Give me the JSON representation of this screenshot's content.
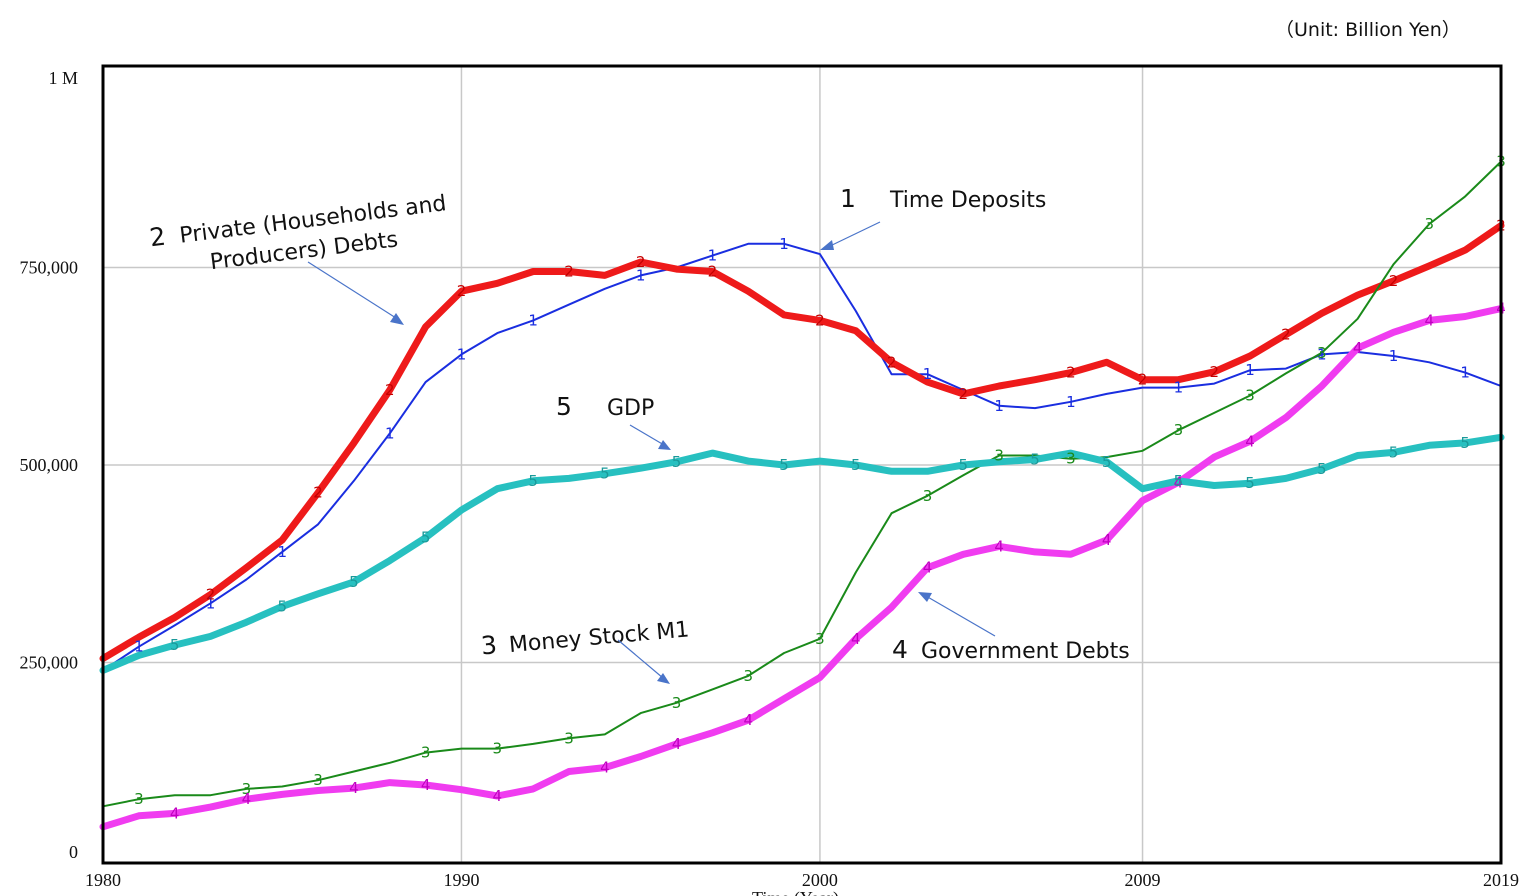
{
  "chart_data": {
    "type": "line",
    "unit_label": "（Unit: Billion Yen）",
    "xlabel": "Time (Year)",
    "ylim": [
      0,
      1000000
    ],
    "xlim": [
      1980,
      2019
    ],
    "x_ticks": [
      {
        "value": 1980,
        "label": "1980"
      },
      {
        "value": 1990,
        "label": "1990"
      },
      {
        "value": 2000,
        "label": "2000"
      },
      {
        "value": 2009,
        "label": "2009"
      },
      {
        "value": 2019,
        "label": "2019"
      }
    ],
    "y_ticks": [
      {
        "value": 0,
        "label": "0"
      },
      {
        "value": 250000,
        "label": "250,000"
      },
      {
        "value": 500000,
        "label": "500,000"
      },
      {
        "value": 750000,
        "label": "750,000"
      },
      {
        "value": 1000000,
        "label": "1 M"
      }
    ],
    "grid": true,
    "x": [
      1980,
      1981,
      1982,
      1983,
      1984,
      1985,
      1986,
      1987,
      1988,
      1989,
      1990,
      1991,
      1992,
      1993,
      1994,
      1995,
      1996,
      1997,
      1998,
      1999,
      2000,
      2001,
      2002,
      2003,
      2004,
      2005,
      2006,
      2007,
      2008,
      2009,
      2010,
      2011,
      2012,
      2013,
      2014,
      2015,
      2016,
      2017,
      2018,
      2019
    ],
    "series": [
      {
        "id": "1",
        "marker": "1",
        "color": "#1a2ee0",
        "width": 2,
        "values": [
          240000,
          270000,
          297000,
          325000,
          355000,
          390000,
          425000,
          480000,
          540000,
          605000,
          640000,
          667000,
          683000,
          703000,
          723000,
          740000,
          750000,
          765000,
          780000,
          780000,
          767000,
          695000,
          615000,
          615000,
          595000,
          575000,
          572000,
          580000,
          590000,
          598000,
          598000,
          603000,
          620000,
          622000,
          640000,
          643000,
          638000,
          630000,
          617000,
          600000
        ]
      },
      {
        "id": "2",
        "marker": "2",
        "color": "#ee1a1a",
        "width": 7,
        "values": [
          255000,
          282000,
          307000,
          336000,
          370000,
          405000,
          465000,
          528000,
          595000,
          675000,
          720000,
          730000,
          745000,
          745000,
          740000,
          757000,
          748000,
          745000,
          720000,
          690000,
          683000,
          670000,
          630000,
          605000,
          590000,
          600000,
          608000,
          617000,
          630000,
          608000,
          608000,
          618000,
          638000,
          665000,
          692000,
          715000,
          733000,
          752000,
          772000,
          803000
        ]
      },
      {
        "id": "3",
        "marker": "3",
        "color": "#1a8a1a",
        "width": 2,
        "values": [
          68000,
          77000,
          82000,
          82000,
          90000,
          93000,
          101000,
          112000,
          123000,
          136000,
          141000,
          141000,
          147000,
          154000,
          159000,
          186000,
          199000,
          216000,
          233000,
          262000,
          280000,
          364000,
          439000,
          461000,
          487000,
          512000,
          512000,
          508000,
          510000,
          518000,
          544000,
          566000,
          588000,
          616000,
          642000,
          685000,
          754000,
          805000,
          840000,
          884000
        ]
      },
      {
        "id": "4",
        "marker": "4",
        "color": "#f03cf0",
        "width": 7,
        "values": [
          42000,
          56000,
          59000,
          67000,
          77000,
          83000,
          88000,
          91000,
          98000,
          95000,
          89000,
          81000,
          90000,
          112000,
          117000,
          131000,
          147000,
          161000,
          177000,
          204000,
          231000,
          280000,
          320000,
          370000,
          387000,
          397000,
          390000,
          387000,
          405000,
          455000,
          478000,
          510000,
          530000,
          560000,
          600000,
          648000,
          668000,
          683000,
          688000,
          698000
        ]
      },
      {
        "id": "5",
        "marker": "5",
        "color": "#27c0c0",
        "width": 7,
        "values": [
          240000,
          259000,
          272000,
          283000,
          301000,
          321000,
          337000,
          352000,
          379000,
          408000,
          443000,
          470000,
          480000,
          483000,
          489000,
          496000,
          504000,
          515000,
          505000,
          500000,
          505000,
          500000,
          492000,
          492000,
          500000,
          504000,
          507000,
          515000,
          504000,
          470000,
          480000,
          474000,
          477000,
          483000,
          495000,
          512000,
          516000,
          525000,
          528000,
          535000
        ]
      }
    ],
    "annotations": [
      {
        "series": "1",
        "number": "1",
        "text": "Time Deposits"
      },
      {
        "series": "2",
        "number": "2",
        "text_lines": [
          "Private (Households and",
          "Producers) Debts"
        ]
      },
      {
        "series": "3",
        "number": "3",
        "text": "Money Stock  M1"
      },
      {
        "series": "4",
        "number": "4",
        "text": "Government Debts"
      },
      {
        "series": "5",
        "number": "5",
        "text": "GDP"
      }
    ]
  }
}
